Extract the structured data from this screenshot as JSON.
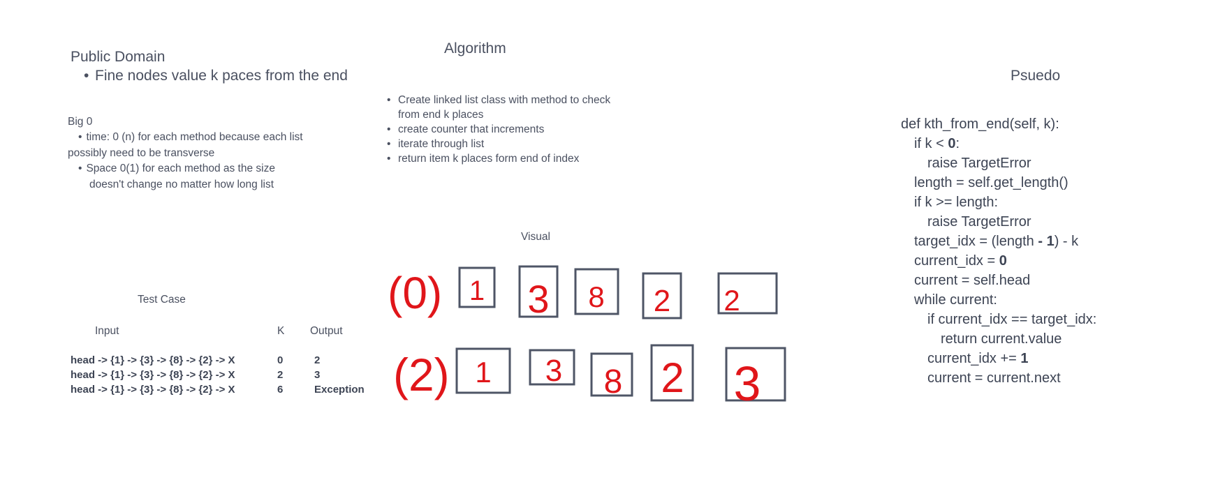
{
  "public_domain": {
    "title": "Public Domain",
    "bullet": "Fine nodes value k paces from the end"
  },
  "big_o": {
    "title": "Big 0",
    "time_line1": "time: 0 (n) for each method because each list",
    "time_line2": "possibly need to be transverse",
    "space_line1": "Space 0(1) for each method as the size",
    "space_line2": "doesn't change no matter how long list"
  },
  "algorithm": {
    "title": "Algorithm",
    "items": [
      "Create linked list class with method to check",
      "from end k places",
      "create counter that increments",
      "iterate through list",
      "return item k places form end of index"
    ]
  },
  "test_case": {
    "title": "Test Case",
    "headers": {
      "input": "Input",
      "k": "K",
      "output": "Output"
    },
    "rows": [
      {
        "input": "head -> {1} -> {3} -> {8} -> {2} -> X",
        "k": "0",
        "output": "2"
      },
      {
        "input": "head -> {1} -> {3} -> {8} -> {2} -> X",
        "k": "2",
        "output": "3"
      },
      {
        "input": "head -> {1} -> {3} -> {8} -> {2} -> X",
        "k": "6",
        "output": "Exception"
      }
    ]
  },
  "visual": {
    "title": "Visual",
    "row1": {
      "label": "(0)",
      "nodes": [
        "1",
        "3",
        "8",
        "2",
        "2"
      ]
    },
    "row2": {
      "label": "(2)",
      "nodes": [
        "1",
        "3",
        "8",
        "2",
        "3"
      ]
    },
    "stroke_color": "#4e5566",
    "ink_color": "#e0161a"
  },
  "pseudo": {
    "title": "Psuedo",
    "lines": {
      "l1": "def kth_from_end(self, k):",
      "l2a": "if k < ",
      "l2b": "0",
      "l2c": ":",
      "l3": "raise TargetError",
      "l4": "length = self.get_length()",
      "l5": "if k >= length:",
      "l6": "raise TargetError",
      "l7a": "target_idx = (length ",
      "l7b": "-",
      "l7c": " ",
      "l7d": "1",
      "l7e": ") - k",
      "l8a": "current_idx = ",
      "l8b": "0",
      "l9": "current = self.head",
      "l10": "while current:",
      "l11": "if current_idx == target_idx:",
      "l12": "return current.value",
      "l13a": "current_idx += ",
      "l13b": "1",
      "l14": "current = current.next"
    }
  }
}
